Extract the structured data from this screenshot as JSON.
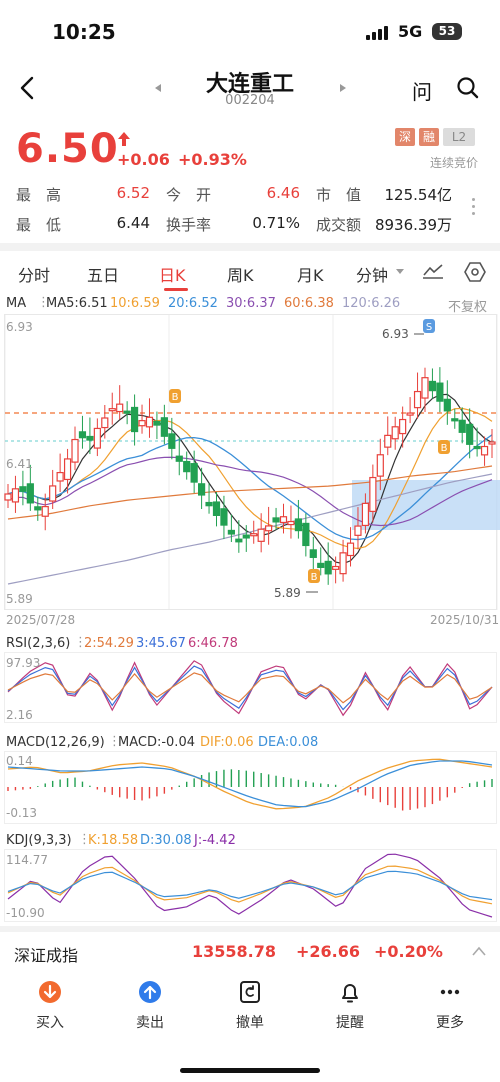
{
  "status": {
    "time": "10:25",
    "network": "5G",
    "battery": "53"
  },
  "header": {
    "name": "大连重工",
    "code": "002204",
    "ask_label": "问"
  },
  "quote": {
    "price": "6.50",
    "change": "+0.06",
    "change_pct": "+0.93%",
    "badge_shen": "深",
    "badge_rong": "融",
    "badge_l2": "L2",
    "auction": "连续竞价",
    "high_label": "最　高",
    "high": "6.52",
    "open_label": "今　开",
    "open": "6.46",
    "mcap_label": "市　值",
    "mcap": "125.54亿",
    "low_label": "最　低",
    "low": "6.44",
    "turnover_label": "换手率",
    "turnover": "0.71%",
    "amount_label": "成交额",
    "amount": "8936.39万"
  },
  "tabs": [
    "分时",
    "五日",
    "日K",
    "周K",
    "月K",
    "分钟"
  ],
  "ma": {
    "label": "MA",
    "ma5": "MA5:6.51",
    "ma10": "10:6.59",
    "ma20": "20:6.52",
    "ma30": "30:6.37",
    "ma60": "60:6.38",
    "ma120": "120:6.26",
    "adjust": "不复权"
  },
  "kchart": {
    "y_top": "6.93",
    "y_mid": "6.41",
    "y_bot": "5.89",
    "peak_label": "6.93",
    "trough_label": "5.89",
    "date_start": "2025/07/28",
    "date_end": "2025/10/31",
    "signal_b": "B",
    "signal_s": "S"
  },
  "rsi": {
    "label": "RSI(2,3,6)",
    "r1": "2:54.29",
    "r2": "3:45.67",
    "r3": "6:46.78",
    "y_top": "97.93",
    "y_bot": "2.16"
  },
  "macd": {
    "label": "MACD(12,26,9)",
    "macd": "MACD:-0.04",
    "dif": "DIF:0.06",
    "dea": "DEA:0.08",
    "y_top": "0.14",
    "y_bot": "-0.13"
  },
  "kdj": {
    "label": "KDJ(9,3,3)",
    "k": "K:18.58",
    "d": "D:30.08",
    "j": "J:-4.42",
    "y_top": "114.77",
    "y_bot": "-10.90"
  },
  "index": {
    "name": "深证成指",
    "value": "13558.78",
    "change": "+26.66",
    "pct": "+0.20%"
  },
  "nav": [
    "买入",
    "卖出",
    "撤单",
    "提醒",
    "更多"
  ],
  "colors": {
    "up": "#e8403b",
    "down": "#22a052",
    "ma5": "#333333",
    "ma10": "#f0a030",
    "ma20": "#3b8fd8",
    "ma30": "#8a4fb0",
    "ma60": "#e07a3c",
    "ma120": "#9e9ec2"
  }
}
